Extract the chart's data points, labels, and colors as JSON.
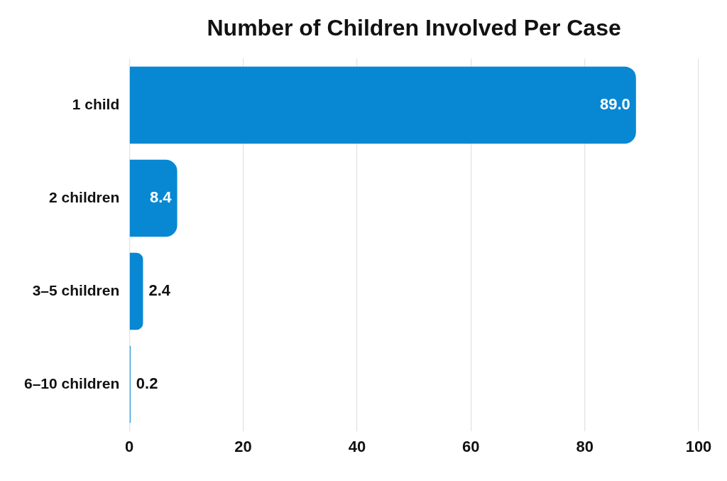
{
  "chart_data": {
    "type": "bar",
    "orientation": "horizontal",
    "title": "Number of Children Involved Per Case",
    "categories": [
      "1 child",
      "2 children",
      "3–5 children",
      "6–10 children"
    ],
    "values": [
      89.0,
      8.4,
      2.4,
      0.2
    ],
    "value_labels": [
      "89.0",
      "8.4",
      "2.4",
      "0.2"
    ],
    "color": "#0888d3",
    "xlim": [
      0,
      100
    ],
    "xticks": [
      0,
      20,
      40,
      60,
      80,
      100
    ],
    "grid": "x"
  }
}
